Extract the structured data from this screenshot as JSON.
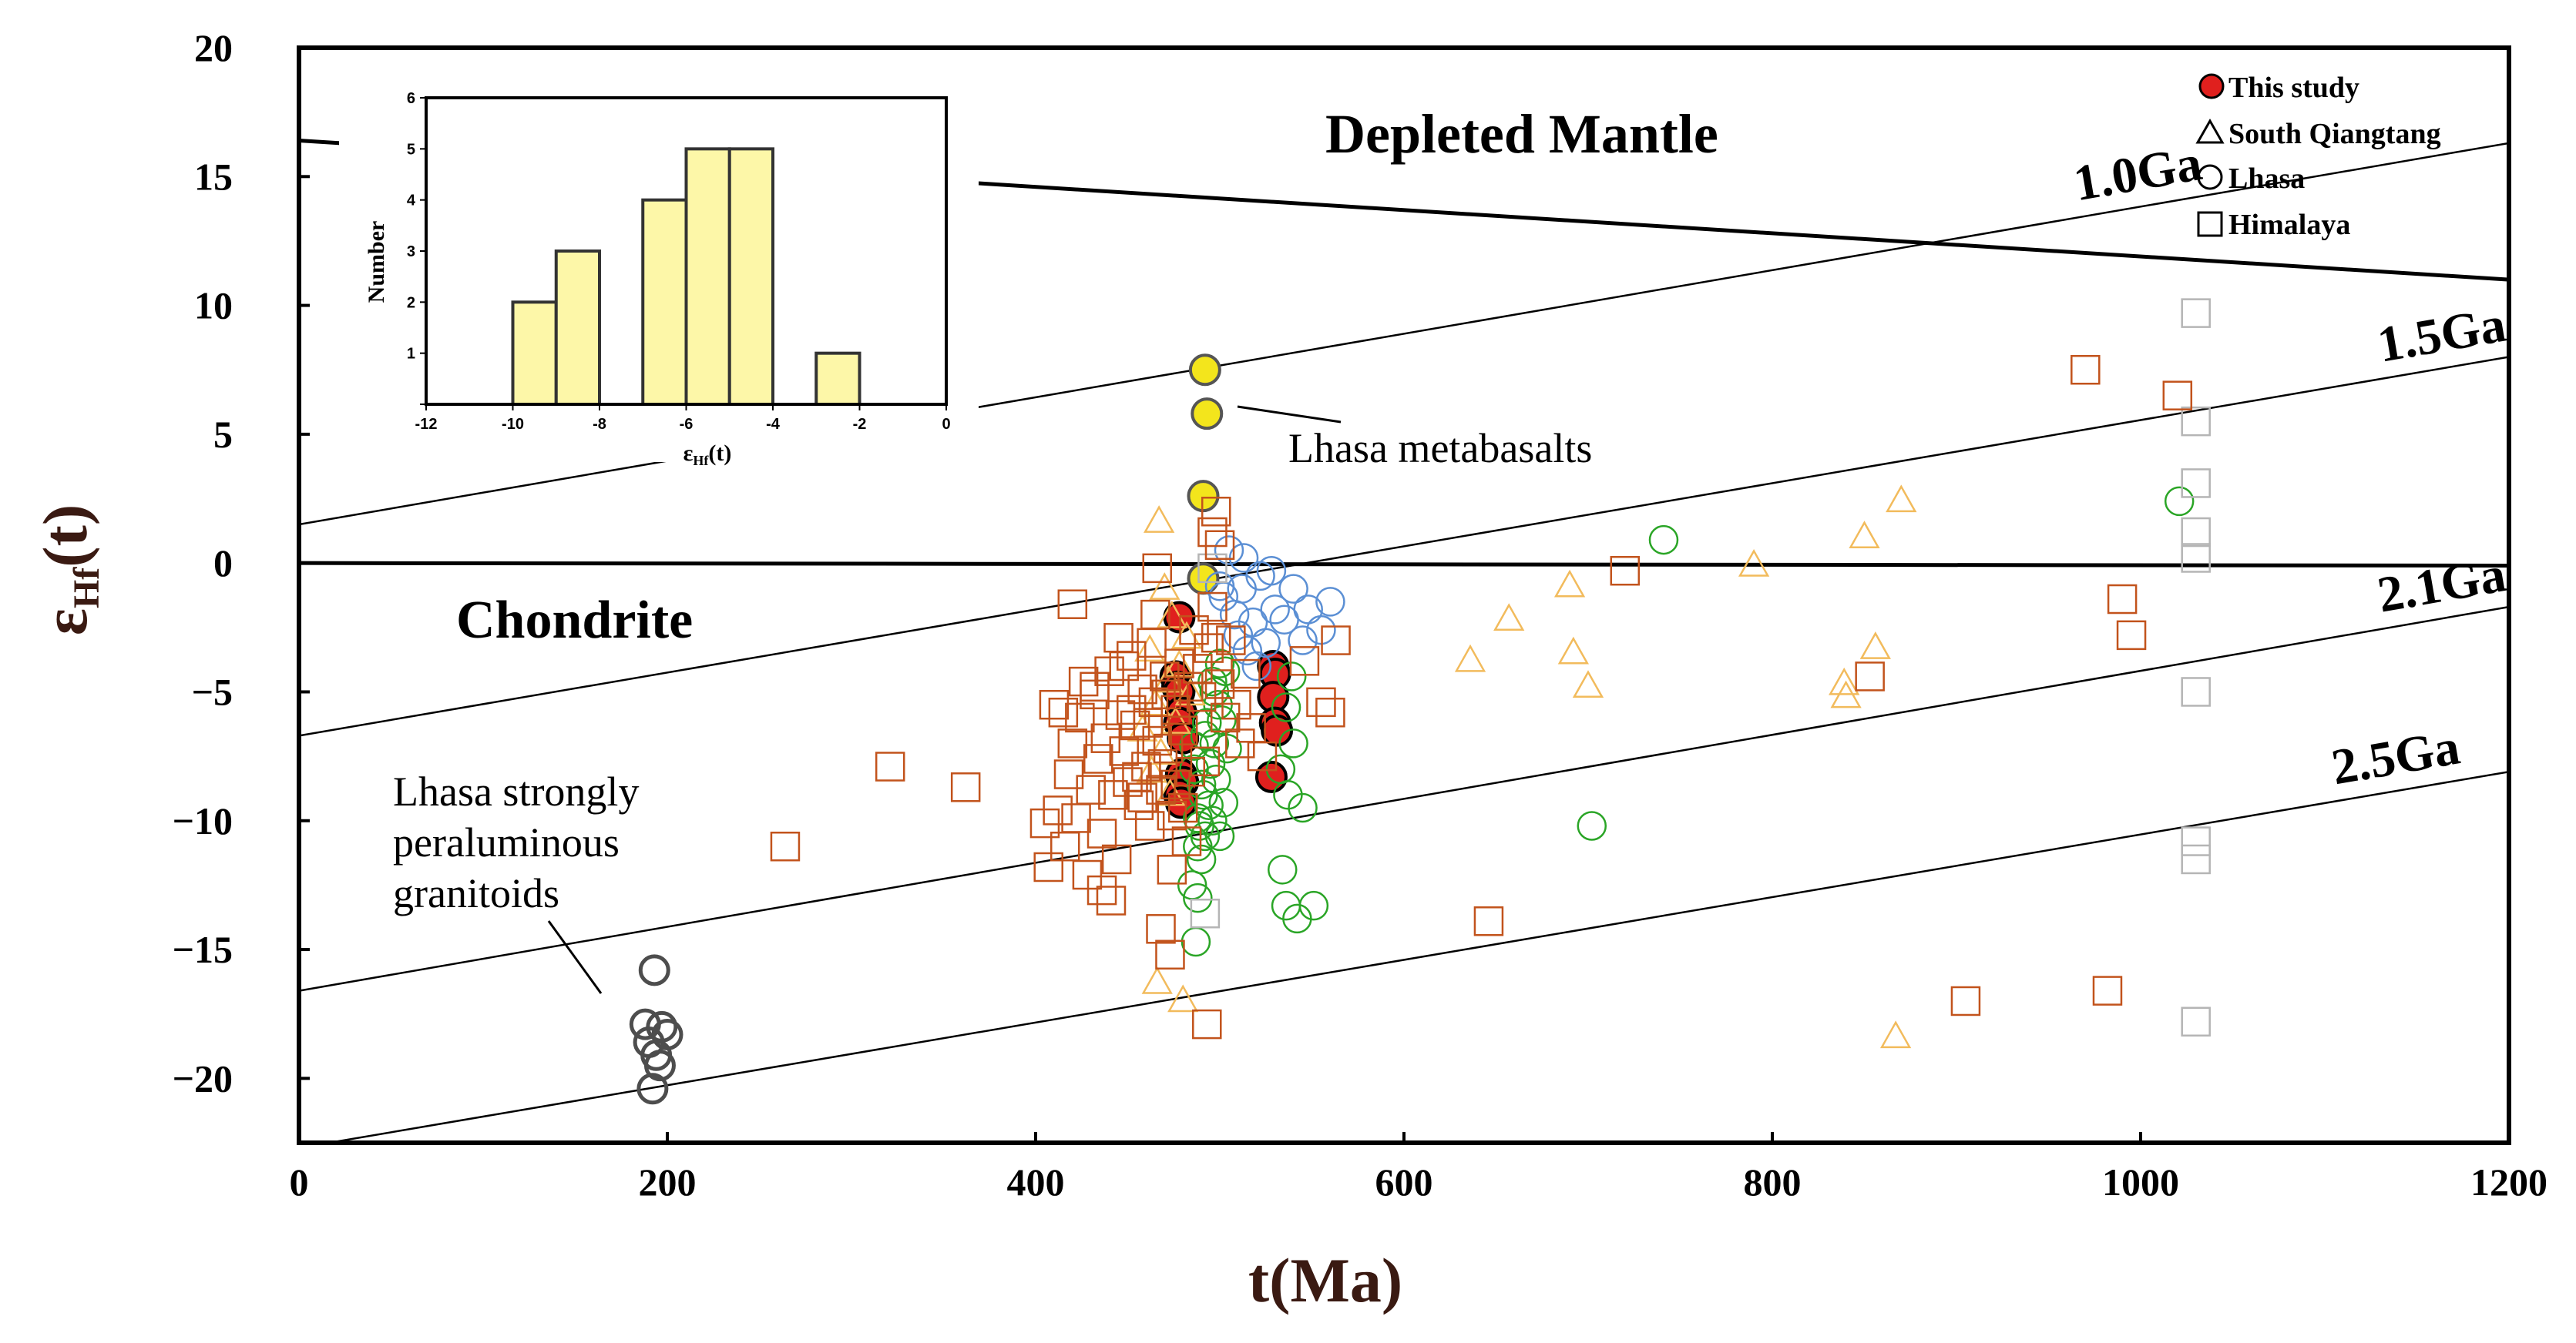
{
  "chart_data": {
    "type": "scatter",
    "xlabel": "t(Ma)",
    "ylabel_main": "ε",
    "ylabel_sub": "Hf",
    "ylabel_tail": "(t)",
    "xlim": [
      0,
      1200
    ],
    "ylim": [
      -22.5,
      20
    ],
    "x_ticks": [
      0,
      200,
      400,
      600,
      800,
      1000,
      1200
    ],
    "y_ticks": [
      20,
      15,
      10,
      5,
      0,
      -5,
      -10,
      -15,
      -20
    ],
    "y_tick_labels": [
      "20",
      "15",
      "10",
      "5",
      "0",
      "−5",
      "−10",
      "−15",
      "−20"
    ],
    "legend": [
      {
        "label": "This study",
        "marker": "filled-circle",
        "color": "#e0201e"
      },
      {
        "label": "South Qiangtang",
        "marker": "triangle"
      },
      {
        "label": "Lhasa",
        "marker": "circle"
      },
      {
        "label": "Himalaya",
        "marker": "square"
      }
    ],
    "reference_lines": [
      {
        "name": "Depleted Mantle",
        "label": "Depleted Mantle",
        "points": [
          [
            0,
            16.4
          ],
          [
            1200,
            11.0
          ]
        ],
        "width": 5
      },
      {
        "name": "Chondrite",
        "label": "Chondrite",
        "points": [
          [
            0,
            0
          ],
          [
            1200,
            -0.1
          ]
        ],
        "width": 5
      },
      {
        "name": "1.0Ga",
        "label": "1.0Ga",
        "points": [
          [
            0,
            1.5
          ],
          [
            1200,
            16.3
          ]
        ],
        "width": 2.5
      },
      {
        "name": "1.5Ga",
        "label": "1.5Ga",
        "points": [
          [
            0,
            -6.7
          ],
          [
            1200,
            8.0
          ]
        ],
        "width": 2.5
      },
      {
        "name": "2.1Ga",
        "label": "2.1Ga",
        "points": [
          [
            0,
            -16.6
          ],
          [
            1200,
            -1.7
          ]
        ],
        "width": 2.5
      },
      {
        "name": "2.5Ga",
        "label": "2.5Ga",
        "points": [
          [
            0,
            -22.7
          ],
          [
            1200,
            -8.1
          ]
        ],
        "width": 2.5
      }
    ],
    "annotations": {
      "depleted_mantle": "Depleted Mantle",
      "chondrite": "Chondrite",
      "lhasa_metabasalts": "Lhasa metabasalts",
      "granitoids_line1": "Lhasa strongly",
      "granitoids_line2": "peraluminous",
      "granitoids_line3": "granitoids"
    },
    "series": [
      {
        "name": "This study",
        "marker": "filled-circle",
        "color": "#e0201e",
        "points": [
          [
            478,
            -2.1
          ],
          [
            476,
            -4.4
          ],
          [
            477,
            -4.8
          ],
          [
            478,
            -5.0
          ],
          [
            479,
            -5.8
          ],
          [
            478,
            -6.2
          ],
          [
            480,
            -6.8
          ],
          [
            479,
            -8.2
          ],
          [
            480,
            -8.5
          ],
          [
            478,
            -9.0
          ],
          [
            479,
            -9.3
          ],
          [
            529,
            -4.0
          ],
          [
            530,
            -4.3
          ],
          [
            529,
            -5.2
          ],
          [
            530,
            -6.2
          ],
          [
            531,
            -6.5
          ],
          [
            528,
            -8.3
          ]
        ]
      },
      {
        "name": "Lhasa metabasalts",
        "marker": "filled-circle",
        "color": "#f3e51c",
        "points": [
          [
            492,
            7.5
          ],
          [
            493,
            5.8
          ],
          [
            491,
            2.6
          ],
          [
            491,
            -0.6
          ]
        ]
      },
      {
        "name": "Lhasa strongly peraluminous granitoids",
        "marker": "circle",
        "color": "#4d4d4d",
        "points": [
          [
            193,
            -15.8
          ],
          [
            188,
            -17.9
          ],
          [
            197,
            -18.0
          ],
          [
            200,
            -18.3
          ],
          [
            190,
            -18.6
          ],
          [
            194,
            -19.1
          ],
          [
            196,
            -19.5
          ],
          [
            192,
            -20.4
          ]
        ]
      },
      {
        "name": "Lhasa (green)",
        "marker": "circle",
        "color": "#2aa526",
        "points": [
          [
            741,
            0.9
          ],
          [
            1021,
            2.4
          ],
          [
            702,
            -10.2
          ],
          [
            540,
            -7.0
          ],
          [
            545,
            -9.5
          ],
          [
            534,
            -11.9
          ],
          [
            536,
            -13.3
          ],
          [
            542,
            -13.8
          ],
          [
            551,
            -13.3
          ],
          [
            487,
            -14.7
          ],
          [
            488,
            -13.0
          ],
          [
            485,
            -12.5
          ],
          [
            490,
            -11.5
          ],
          [
            492,
            -10.6
          ],
          [
            488,
            -9.9
          ],
          [
            494,
            -9.4
          ],
          [
            490,
            -8.6
          ],
          [
            495,
            -7.8
          ],
          [
            497,
            -7.0
          ],
          [
            493,
            -6.2
          ],
          [
            499,
            -5.5
          ],
          [
            496,
            -4.6
          ],
          [
            500,
            -3.9
          ],
          [
            536,
            -5.6
          ],
          [
            539,
            -4.4
          ],
          [
            533,
            -8.0
          ],
          [
            537,
            -9.0
          ],
          [
            486,
            -8.0
          ],
          [
            489,
            -10.2
          ],
          [
            491,
            -9.0
          ],
          [
            496,
            -10.0
          ],
          [
            498,
            -8.4
          ],
          [
            486,
            -7.1
          ],
          [
            492,
            -6.7
          ],
          [
            497,
            -5.0
          ],
          [
            501,
            -6.1
          ],
          [
            503,
            -4.2
          ],
          [
            504,
            -7.2
          ],
          [
            502,
            -9.3
          ],
          [
            500,
            -10.6
          ],
          [
            488,
            -11.0
          ]
        ]
      },
      {
        "name": "Lhasa (blue)",
        "marker": "circle",
        "color": "#5b8fd4",
        "points": [
          [
            505,
            0.5
          ],
          [
            513,
            0.2
          ],
          [
            522,
            -0.5
          ],
          [
            540,
            -1.0
          ],
          [
            548,
            -1.8
          ],
          [
            560,
            -1.5
          ],
          [
            555,
            -2.6
          ],
          [
            530,
            -1.8
          ],
          [
            518,
            -2.3
          ],
          [
            510,
            -2.8
          ],
          [
            525,
            -3.1
          ],
          [
            502,
            -1.3
          ],
          [
            508,
            -2.0
          ],
          [
            515,
            -3.4
          ],
          [
            520,
            -4.0
          ],
          [
            535,
            -2.2
          ],
          [
            545,
            -3.0
          ],
          [
            500,
            -0.9
          ],
          [
            512,
            -1.0
          ],
          [
            528,
            -0.3
          ]
        ]
      },
      {
        "name": "South Qiangtang",
        "marker": "triangle",
        "color": "#f2bb5c",
        "points": [
          [
            467,
            1.6
          ],
          [
            470,
            -1.0
          ],
          [
            474,
            -2.1
          ],
          [
            462,
            -3.4
          ],
          [
            472,
            -4.6
          ],
          [
            465,
            -5.5
          ],
          [
            476,
            -6.2
          ],
          [
            468,
            -7.4
          ],
          [
            473,
            -9.0
          ],
          [
            466,
            -16.3
          ],
          [
            480,
            -17.0
          ],
          [
            482,
            -2.9
          ],
          [
            478,
            -4.0
          ],
          [
            484,
            -5.1
          ],
          [
            458,
            -6.5
          ],
          [
            463,
            -8.1
          ],
          [
            870,
            2.4
          ],
          [
            850,
            1.0
          ],
          [
            790,
            -0.1
          ],
          [
            690,
            -0.9
          ],
          [
            657,
            -2.2
          ],
          [
            636,
            -3.8
          ],
          [
            692,
            -3.5
          ],
          [
            700,
            -4.8
          ],
          [
            839,
            -4.7
          ],
          [
            840,
            -5.2
          ],
          [
            856,
            -3.3
          ],
          [
            867,
            -18.4
          ]
        ]
      },
      {
        "name": "Himalaya (white)",
        "marker": "square",
        "color": "#b5b5b5",
        "points": [
          [
            1030,
            9.7
          ],
          [
            1030,
            5.5
          ],
          [
            1030,
            3.1
          ],
          [
            1030,
            1.2
          ],
          [
            1030,
            0.2
          ],
          [
            1030,
            -5.0
          ],
          [
            1030,
            -10.8
          ],
          [
            1030,
            -11.5
          ],
          [
            1030,
            -17.8
          ],
          [
            492,
            -13.6
          ],
          [
            496,
            -0.2
          ]
        ]
      },
      {
        "name": "Himalaya",
        "marker": "square",
        "color": "#c2531c",
        "points": [
          [
            264,
            -11.0
          ],
          [
            321,
            -7.9
          ],
          [
            362,
            -8.7
          ],
          [
            405,
            -10.1
          ],
          [
            407,
            -11.8
          ],
          [
            410,
            -5.5
          ],
          [
            412,
            -9.6
          ],
          [
            415,
            -5.8
          ],
          [
            416,
            -11.0
          ],
          [
            418,
            -8.2
          ],
          [
            420,
            -7.0
          ],
          [
            422,
            -9.9
          ],
          [
            424,
            -6.0
          ],
          [
            426,
            -4.6
          ],
          [
            428,
            -12.1
          ],
          [
            430,
            -8.8
          ],
          [
            432,
            -5.1
          ],
          [
            434,
            -7.6
          ],
          [
            436,
            -10.5
          ],
          [
            438,
            -6.8
          ],
          [
            440,
            -4.2
          ],
          [
            442,
            -9.0
          ],
          [
            444,
            -11.5
          ],
          [
            446,
            -5.9
          ],
          [
            448,
            -7.3
          ],
          [
            450,
            -8.5
          ],
          [
            452,
            -3.6
          ],
          [
            454,
            -6.3
          ],
          [
            456,
            -9.4
          ],
          [
            458,
            -4.9
          ],
          [
            460,
            -7.9
          ],
          [
            462,
            -10.2
          ],
          [
            464,
            -5.4
          ],
          [
            466,
            -6.9
          ],
          [
            468,
            -8.8
          ],
          [
            470,
            -4.4
          ],
          [
            472,
            -7.2
          ],
          [
            474,
            -9.8
          ],
          [
            476,
            -5.7
          ],
          [
            478,
            -3.9
          ],
          [
            480,
            -6.5
          ],
          [
            482,
            -10.8
          ],
          [
            484,
            -8.1
          ],
          [
            486,
            -2.6
          ],
          [
            488,
            -4.1
          ],
          [
            490,
            -5.2
          ],
          [
            492,
            -7.7
          ],
          [
            494,
            -3.3
          ],
          [
            496,
            -1.7
          ],
          [
            498,
            -2.9
          ],
          [
            500,
            -4.7
          ],
          [
            503,
            -6.0
          ],
          [
            506,
            -3.0
          ],
          [
            509,
            -5.5
          ],
          [
            511,
            -7.0
          ],
          [
            514,
            -4.3
          ],
          [
            517,
            -6.4
          ],
          [
            523,
            -7.5
          ],
          [
            546,
            -3.8
          ],
          [
            555,
            -5.4
          ],
          [
            560,
            -5.8
          ],
          [
            563,
            -3.0
          ],
          [
            420,
            -1.6
          ],
          [
            432,
            -4.8
          ],
          [
            436,
            -12.7
          ],
          [
            441,
            -13.1
          ],
          [
            466,
            -0.2
          ],
          [
            468,
            -14.2
          ],
          [
            473,
            -15.2
          ],
          [
            474,
            -11.9
          ],
          [
            493,
            -17.9
          ],
          [
            496,
            1.2
          ],
          [
            498,
            2.0
          ],
          [
            500,
            0.7
          ],
          [
            445,
            -2.9
          ],
          [
            448,
            -4.0
          ],
          [
            452,
            -5.7
          ],
          [
            455,
            -8.3
          ],
          [
            458,
            -9.1
          ],
          [
            461,
            -6.2
          ],
          [
            463,
            -3.1
          ],
          [
            465,
            -2.0
          ],
          [
            469,
            -7.8
          ],
          [
            471,
            -5.1
          ],
          [
            476,
            -8.6
          ],
          [
            480,
            -9.5
          ],
          [
            483,
            -4.8
          ],
          [
            646,
            -13.9
          ],
          [
            720,
            -0.3
          ],
          [
            853,
            -4.4
          ],
          [
            905,
            -17.0
          ],
          [
            970,
            7.5
          ],
          [
            982,
            -16.6
          ],
          [
            990,
            -1.4
          ],
          [
            995,
            -2.8
          ],
          [
            1020,
            6.5
          ]
        ]
      }
    ],
    "inset": {
      "type": "histogram",
      "xlabel_main": "ε",
      "xlabel_sub": "Hf",
      "xlabel_tail": "(t)",
      "ylabel": "Number",
      "xlim": [
        -12,
        0
      ],
      "ylim": [
        0,
        6
      ],
      "x_ticks": [
        -12,
        -10,
        -8,
        -6,
        -4,
        -2,
        0
      ],
      "x_tick_labels": [
        "-12",
        "-10",
        "-8",
        "-6",
        "-4",
        "-2",
        "0"
      ],
      "y_ticks": [
        0,
        1,
        2,
        3,
        4,
        5,
        6
      ],
      "bin_width": 1,
      "bins": [
        {
          "start": -10,
          "count": 2
        },
        {
          "start": -9,
          "count": 3
        },
        {
          "start": -7,
          "count": 4
        },
        {
          "start": -6,
          "count": 5
        },
        {
          "start": -5,
          "count": 5
        },
        {
          "start": -3,
          "count": 1
        }
      ],
      "bar_color": "#fdf7a8"
    }
  }
}
